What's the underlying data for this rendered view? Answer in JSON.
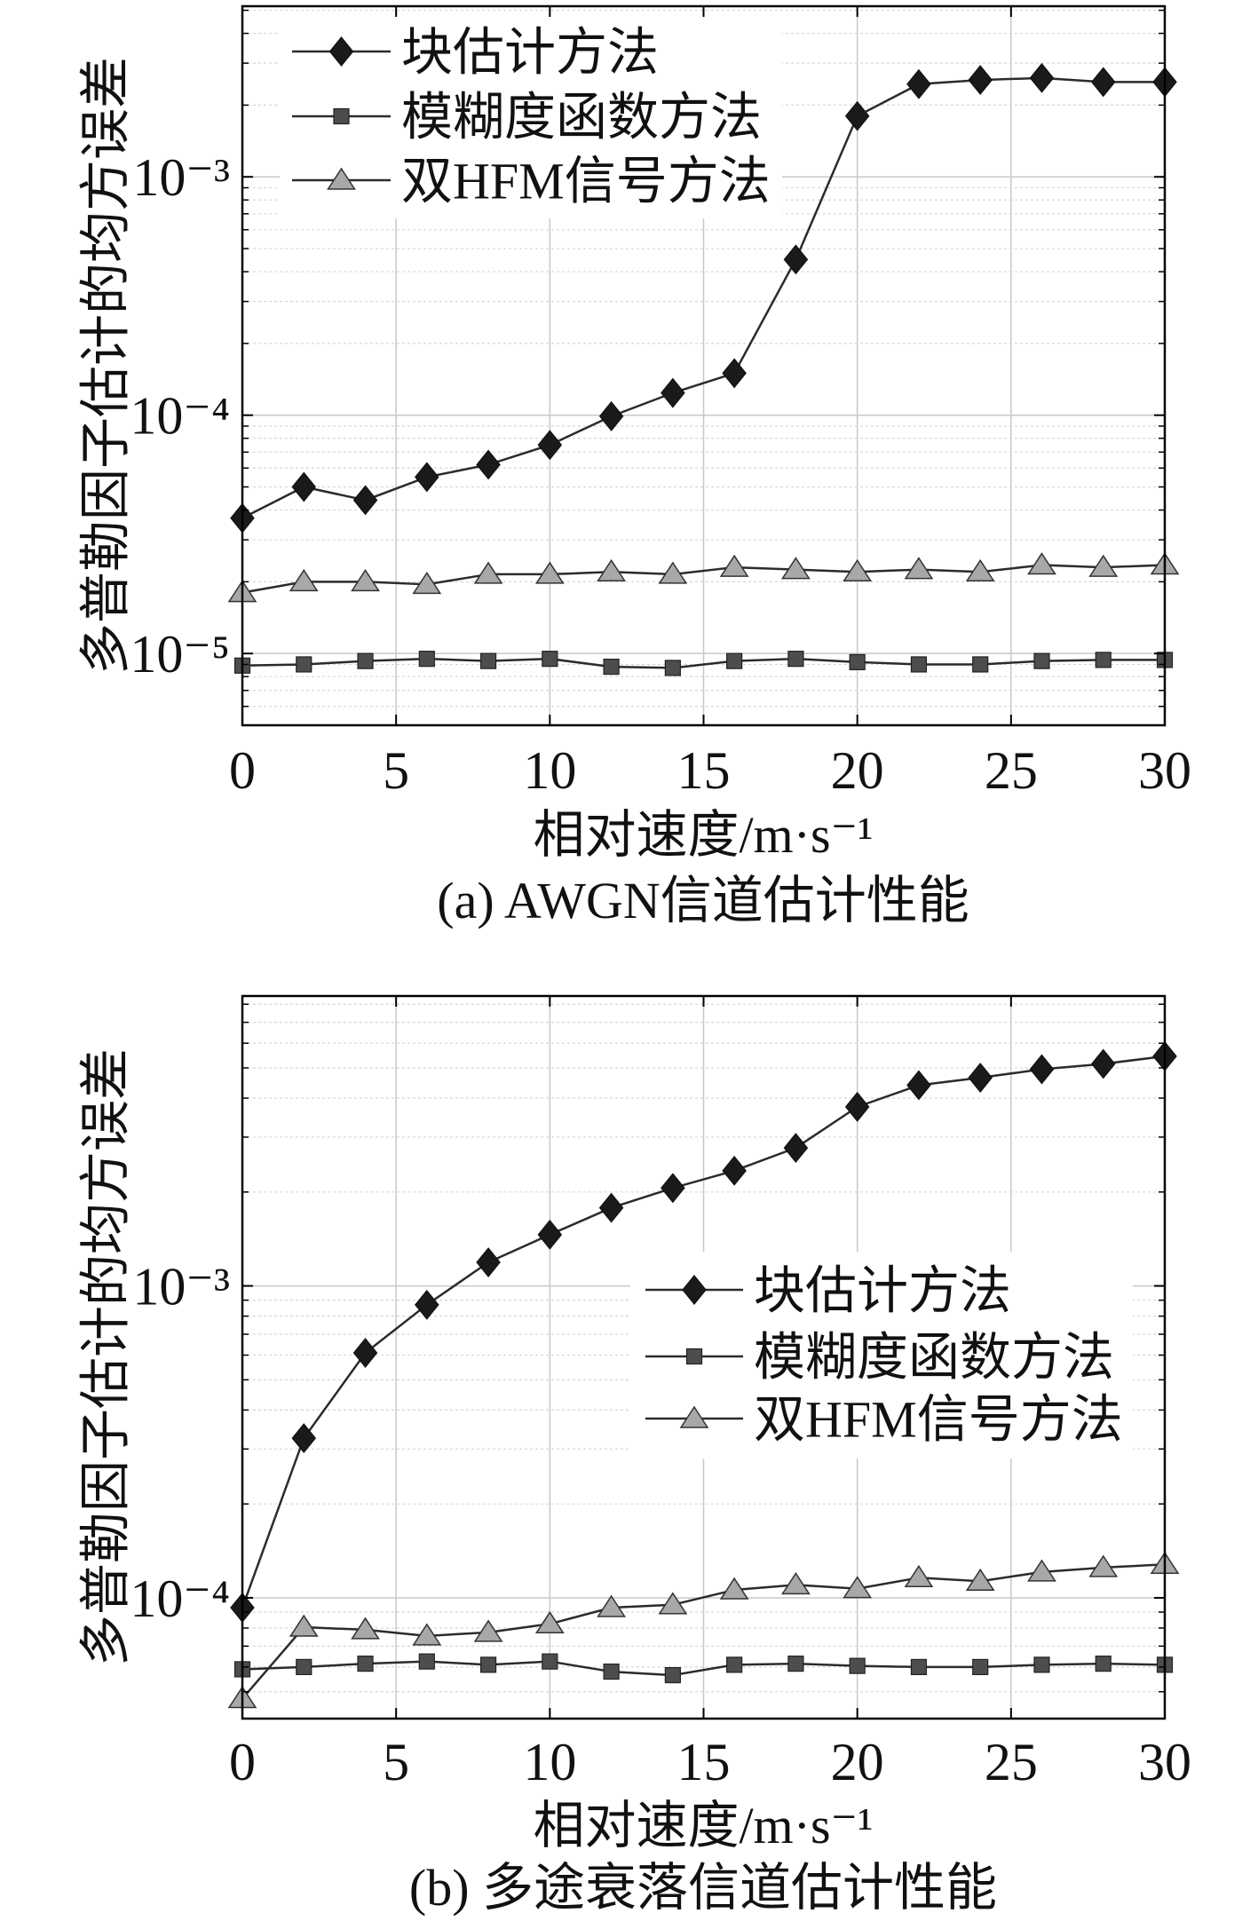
{
  "colors": {
    "background": "#ffffff",
    "axis": "#000000",
    "grid_major": "#c8c8c8",
    "grid_minor": "#d6d6d6",
    "line": "#2b2b2b"
  },
  "chart_data": [
    {
      "type": "line",
      "caption": "(a) AWGN信道估计性能",
      "xlabel": "相对速度/m·s⁻¹",
      "ylabel": "多普勒因子估计的均方误差",
      "xlim": [
        0,
        30
      ],
      "xticks": [
        0,
        5,
        10,
        15,
        20,
        25,
        30
      ],
      "yscale": "log",
      "ylim": [
        5e-06,
        0.0052
      ],
      "yticks": [
        {
          "value": 1e-05,
          "label": "10⁻⁵"
        },
        {
          "value": 0.0001,
          "label": "10⁻⁴"
        },
        {
          "value": 0.001,
          "label": "10⁻³"
        }
      ],
      "grid": true,
      "minor_grid": true,
      "legend_position": "top-left",
      "x": [
        0,
        2,
        4,
        6,
        8,
        10,
        12,
        14,
        16,
        18,
        20,
        22,
        24,
        26,
        28,
        30
      ],
      "series": [
        {
          "name": "块估计方法",
          "marker": "diamond",
          "marker_color": "#1a1a1a",
          "values": [
            3.7e-05,
            5e-05,
            4.4e-05,
            5.5e-05,
            6.2e-05,
            7.5e-05,
            9.9e-05,
            0.000124,
            0.00015,
            0.00045,
            0.0018,
            0.00245,
            0.00255,
            0.0026,
            0.0025,
            0.0025
          ]
        },
        {
          "name": "模糊度函数方法",
          "marker": "square",
          "marker_color": "#4d4d4d",
          "values": [
            8.9e-06,
            9e-06,
            9.3e-06,
            9.5e-06,
            9.3e-06,
            9.5e-06,
            8.8e-06,
            8.7e-06,
            9.3e-06,
            9.5e-06,
            9.2e-06,
            9e-06,
            9e-06,
            9.3e-06,
            9.4e-06,
            9.4e-06
          ]
        },
        {
          "name": "双HFM信号方法",
          "marker": "triangle",
          "marker_color": "#a8a8a8",
          "values": [
            1.8e-05,
            2e-05,
            2e-05,
            1.95e-05,
            2.15e-05,
            2.15e-05,
            2.2e-05,
            2.15e-05,
            2.3e-05,
            2.25e-05,
            2.2e-05,
            2.25e-05,
            2.2e-05,
            2.35e-05,
            2.3e-05,
            2.35e-05
          ]
        }
      ]
    },
    {
      "type": "line",
      "caption": "(b) 多途衰落信道估计性能",
      "xlabel": "相对速度/m·s⁻¹",
      "ylabel": "多普勒因子估计的均方误差",
      "xlim": [
        0,
        30
      ],
      "xticks": [
        0,
        5,
        10,
        15,
        20,
        25,
        30
      ],
      "yscale": "log",
      "ylim": [
        4.1e-05,
        0.0085
      ],
      "yticks": [
        {
          "value": 0.0001,
          "label": "10⁻⁴"
        },
        {
          "value": 0.001,
          "label": "10⁻³"
        }
      ],
      "grid": true,
      "minor_grid": true,
      "legend_position": "right",
      "x": [
        0,
        2,
        4,
        6,
        8,
        10,
        12,
        14,
        16,
        18,
        20,
        22,
        24,
        26,
        28,
        30
      ],
      "series": [
        {
          "name": "块估计方法",
          "marker": "diamond",
          "marker_color": "#1a1a1a",
          "values": [
            9.3e-05,
            0.000325,
            0.00061,
            0.00087,
            0.00119,
            0.00146,
            0.00178,
            0.00206,
            0.00234,
            0.00277,
            0.00375,
            0.0044,
            0.00465,
            0.00495,
            0.00515,
            0.00545
          ]
        },
        {
          "name": "模糊度函数方法",
          "marker": "square",
          "marker_color": "#4d4d4d",
          "values": [
            5.9e-05,
            6e-05,
            6.15e-05,
            6.25e-05,
            6.1e-05,
            6.25e-05,
            5.8e-05,
            5.65e-05,
            6.1e-05,
            6.15e-05,
            6.05e-05,
            6e-05,
            6e-05,
            6.1e-05,
            6.15e-05,
            6.1e-05
          ]
        },
        {
          "name": "双HFM信号方法",
          "marker": "triangle",
          "marker_color": "#a8a8a8",
          "values": [
            4.75e-05,
            8.05e-05,
            7.9e-05,
            7.55e-05,
            7.75e-05,
            8.25e-05,
            9.3e-05,
            9.5e-05,
            0.000106,
            0.00011,
            0.000107,
            0.000116,
            0.000113,
            0.000121,
            0.000125,
            0.000128
          ]
        }
      ]
    }
  ]
}
